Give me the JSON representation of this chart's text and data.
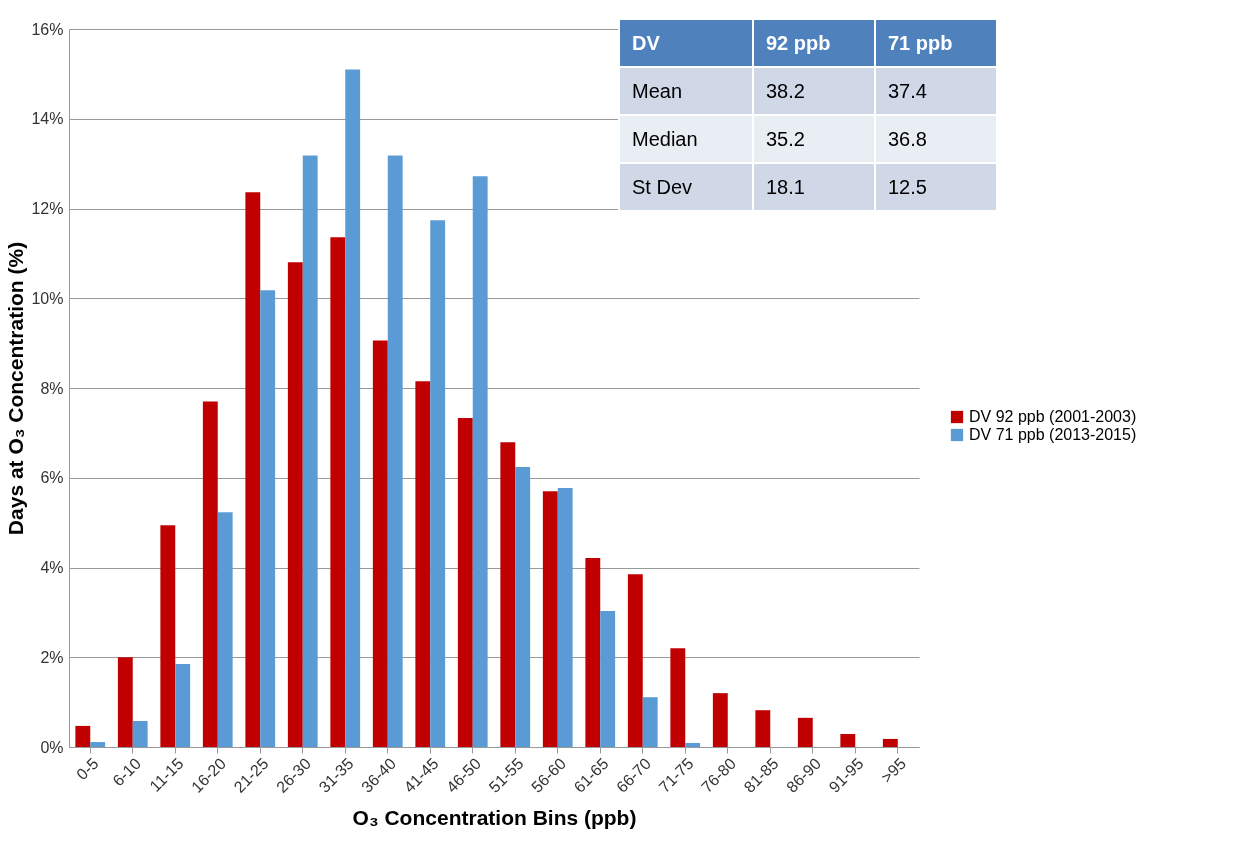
{
  "chart_data": {
    "type": "bar",
    "xlabel": "O₃ Concentration Bins (ppb)",
    "ylabel": "Days at O₃ Concentration (%)",
    "categories": [
      "0-5",
      "6-10",
      "11-15",
      "16-20",
      "21-25",
      "26-30",
      "31-35",
      "36-40",
      "41-45",
      "46-50",
      "51-55",
      "56-60",
      "61-65",
      "66-70",
      "71-75",
      "76-80",
      "81-85",
      "86-90",
      "91-95",
      ">95"
    ],
    "series": [
      {
        "name": "DV 92 ppb (2001-2003)",
        "color": "#c00000",
        "values": [
          0.47,
          2.0,
          4.94,
          7.7,
          12.36,
          10.8,
          11.36,
          9.06,
          8.15,
          7.33,
          6.79,
          5.7,
          4.21,
          3.85,
          2.2,
          1.2,
          0.82,
          0.65,
          0.29,
          0.18
        ]
      },
      {
        "name": "DV 71 ppb (2013-2015)",
        "color": "#5b9bd5",
        "values": [
          0.11,
          0.58,
          1.85,
          5.23,
          10.18,
          13.18,
          15.1,
          13.18,
          11.74,
          12.72,
          6.24,
          5.77,
          3.03,
          1.11,
          0.09,
          null,
          null,
          null,
          null,
          null
        ]
      }
    ],
    "ylim": [
      0,
      16
    ],
    "yticks": [
      {
        "value": 0,
        "label": "0%"
      },
      {
        "value": 2,
        "label": "2%"
      },
      {
        "value": 4,
        "label": "4%"
      },
      {
        "value": 6,
        "label": "6%"
      },
      {
        "value": 8,
        "label": "8%"
      },
      {
        "value": 10,
        "label": "10%"
      },
      {
        "value": 12,
        "label": "12%"
      },
      {
        "value": 14,
        "label": "14%"
      },
      {
        "value": 16,
        "label": "16%"
      }
    ],
    "grid": "y",
    "legend": "right",
    "annotations": [
      "DV",
      "92 ppb",
      "71 ppb",
      "Mean",
      "38.2",
      "37.4",
      "Median",
      "35.2",
      "36.8",
      "St Dev",
      "18.1",
      "12.5"
    ]
  }
}
